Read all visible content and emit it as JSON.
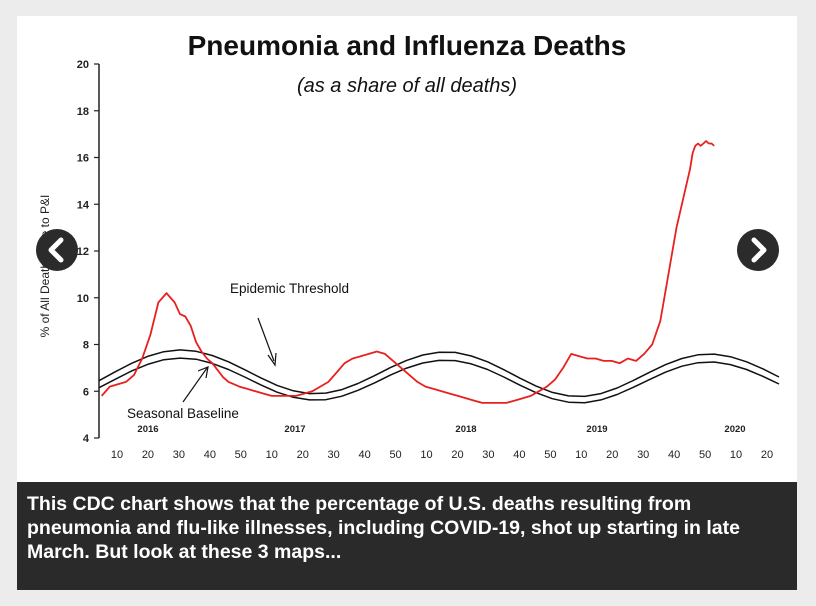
{
  "slide": {
    "caption": "This CDC chart shows that the percentage of U.S. deaths resulting from pneumonia and flu-like illnesses, including COVID-19, shot up starting in late March. But look at these 3 maps...",
    "prev_icon": "chevron-left-icon",
    "next_icon": "chevron-right-icon"
  },
  "chart_data": {
    "type": "line",
    "title": "Pneumonia and Influenza Deaths",
    "subtitle": "(as a share of all deaths)",
    "ylabel": "% of All Deaths Due to P&I",
    "ylim": [
      4,
      20
    ],
    "yticks": [
      "4",
      "6",
      "8",
      "10",
      "12",
      "14",
      "16",
      "18",
      "20"
    ],
    "xticks": [
      "10",
      "20",
      "30",
      "40",
      "50",
      "10",
      "20",
      "30",
      "40",
      "50",
      "10",
      "20",
      "30",
      "40",
      "50",
      "10",
      "20",
      "30",
      "40",
      "50",
      "10",
      "20"
    ],
    "year_labels": [
      "2016",
      "2017",
      "2018",
      "2019",
      "2020"
    ],
    "annotations": [
      "Epidemic Threshold",
      "Seasonal Baseline"
    ],
    "colors": {
      "observed": "#e8201f",
      "threshold": "#111111",
      "baseline": "#111111"
    },
    "series": [
      {
        "key": "observed",
        "x": [
          1,
          4,
          7,
          10,
          13,
          16,
          19,
          22,
          25,
          28,
          30,
          32,
          34,
          36,
          38,
          40,
          42,
          44,
          46,
          48,
          50,
          52,
          55,
          58,
          61,
          64,
          67,
          70,
          73,
          76,
          79,
          82,
          85,
          88,
          91,
          94,
          97,
          100,
          103,
          106,
          109,
          112,
          115,
          118,
          121,
          124,
          127,
          130,
          133,
          136,
          139,
          142,
          145,
          148,
          151,
          154,
          157,
          160,
          163,
          166,
          169,
          172,
          175,
          178,
          181,
          184,
          187,
          190,
          193,
          196,
          199,
          202,
          205,
          208,
          211,
          214,
          217,
          219,
          220,
          221,
          222,
          223,
          224,
          225,
          226,
          227,
          228
        ],
        "values": [
          5.8,
          6.2,
          6.3,
          6.4,
          6.7,
          7.4,
          8.4,
          9.8,
          10.2,
          9.8,
          9.3,
          9.2,
          8.8,
          8.1,
          7.7,
          7.4,
          7.2,
          6.9,
          6.6,
          6.4,
          6.3,
          6.2,
          6.1,
          6.0,
          5.9,
          5.8,
          5.8,
          5.8,
          5.8,
          5.9,
          6.0,
          6.2,
          6.4,
          6.8,
          7.2,
          7.4,
          7.5,
          7.6,
          7.7,
          7.6,
          7.3,
          7.0,
          6.7,
          6.4,
          6.2,
          6.1,
          6.0,
          5.9,
          5.8,
          5.7,
          5.6,
          5.5,
          5.5,
          5.5,
          5.5,
          5.6,
          5.7,
          5.8,
          6.0,
          6.2,
          6.5,
          7.0,
          7.6,
          7.5,
          7.4,
          7.4,
          7.3,
          7.3,
          7.2,
          7.4,
          7.3,
          7.6,
          8.0,
          9.0,
          11.0,
          13.0,
          14.5,
          15.5,
          16.2,
          16.5,
          16.6,
          16.5,
          16.6,
          16.7,
          16.6,
          16.6,
          16.5
        ]
      },
      {
        "key": "threshold",
        "annotation": "Epidemic Threshold",
        "x": [
          0,
          6,
          12,
          18,
          24,
          30,
          36,
          42,
          48,
          54,
          60,
          66,
          72,
          78,
          84,
          90,
          96,
          102,
          108,
          114,
          120,
          126,
          132,
          138,
          144,
          150,
          156,
          162,
          168,
          174,
          180,
          186,
          192,
          198,
          204,
          210,
          216,
          222,
          228,
          234,
          240,
          246,
          252
        ],
        "values": [
          6.45,
          6.83,
          7.19,
          7.49,
          7.69,
          7.77,
          7.71,
          7.53,
          7.26,
          6.92,
          6.57,
          6.25,
          6.02,
          5.9,
          5.92,
          6.07,
          6.33,
          6.66,
          7.01,
          7.32,
          7.55,
          7.67,
          7.66,
          7.51,
          7.26,
          6.92,
          6.56,
          6.22,
          5.95,
          5.8,
          5.78,
          5.9,
          6.14,
          6.46,
          6.81,
          7.14,
          7.4,
          7.56,
          7.59,
          7.48,
          7.26,
          6.96,
          6.61
        ]
      },
      {
        "key": "baseline",
        "annotation": "Seasonal Baseline",
        "x": [
          0,
          6,
          12,
          18,
          24,
          30,
          36,
          42,
          48,
          54,
          60,
          66,
          72,
          78,
          84,
          90,
          96,
          102,
          108,
          114,
          120,
          126,
          132,
          138,
          144,
          150,
          156,
          162,
          168,
          174,
          180,
          186,
          192,
          198,
          204,
          210,
          216,
          222,
          228,
          234,
          240,
          246,
          252
        ],
        "values": [
          6.15,
          6.51,
          6.86,
          7.15,
          7.35,
          7.42,
          7.37,
          7.19,
          6.93,
          6.61,
          6.27,
          5.96,
          5.74,
          5.63,
          5.64,
          5.79,
          6.04,
          6.35,
          6.69,
          6.99,
          7.21,
          7.32,
          7.31,
          7.17,
          6.93,
          6.61,
          6.26,
          5.94,
          5.68,
          5.53,
          5.51,
          5.63,
          5.86,
          6.17,
          6.5,
          6.82,
          7.07,
          7.22,
          7.25,
          7.14,
          6.93,
          6.64,
          6.31
        ]
      }
    ]
  }
}
